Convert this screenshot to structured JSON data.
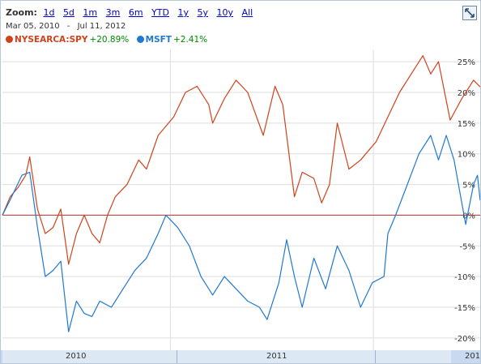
{
  "zoom": {
    "label": "Zoom:",
    "options": [
      "1d",
      "5d",
      "1m",
      "3m",
      "6m",
      "YTD",
      "1y",
      "5y",
      "10y",
      "All"
    ]
  },
  "date_range": {
    "start": "Mar 05, 2010",
    "separator": "-",
    "end": "Jul 11, 2012"
  },
  "legend": [
    {
      "name": "NYSEARCA:SPY",
      "change": "+20.89%",
      "color": "#d0421b"
    },
    {
      "name": "MSFT",
      "change": "+2.41%",
      "color": "#1f78d1"
    }
  ],
  "nav": {
    "labels": [
      "2010",
      "2011",
      "201"
    ]
  },
  "colors": {
    "spy": "#d0421b",
    "msft": "#1f78d1",
    "zero_line": "#b03030",
    "grid": "#dddddd"
  },
  "chart_data": {
    "type": "line",
    "title": "",
    "xlabel": "",
    "ylabel": "",
    "x_range": [
      "2010-03-05",
      "2012-07-11"
    ],
    "ylim": [
      -22,
      27
    ],
    "y_ticks": [
      25,
      20,
      15,
      10,
      5,
      0,
      -5,
      -10,
      -15,
      -20
    ],
    "y_tick_labels": [
      "25%",
      "20%",
      "15%",
      "10%",
      "5%",
      "0%",
      "-5%",
      "-10%",
      "-15%",
      "-20%"
    ],
    "x_tick_labels": [
      "2010",
      "2011"
    ],
    "grid": true,
    "series": [
      {
        "name": "NYSEARCA:SPY",
        "points": [
          [
            "2010-03-05",
            0
          ],
          [
            "2010-03-19",
            3
          ],
          [
            "2010-04-02",
            4.5
          ],
          [
            "2010-04-16",
            6.5
          ],
          [
            "2010-04-23",
            9.5
          ],
          [
            "2010-05-07",
            1
          ],
          [
            "2010-05-21",
            -3
          ],
          [
            "2010-06-04",
            -2
          ],
          [
            "2010-06-18",
            1
          ],
          [
            "2010-07-02",
            -8
          ],
          [
            "2010-07-16",
            -3
          ],
          [
            "2010-07-30",
            0
          ],
          [
            "2010-08-13",
            -3
          ],
          [
            "2010-08-27",
            -4.5
          ],
          [
            "2010-09-10",
            0
          ],
          [
            "2010-09-24",
            3
          ],
          [
            "2010-10-15",
            5
          ],
          [
            "2010-11-05",
            9
          ],
          [
            "2010-11-19",
            7.5
          ],
          [
            "2010-12-10",
            13
          ],
          [
            "2011-01-07",
            16
          ],
          [
            "2011-01-28",
            20
          ],
          [
            "2011-02-18",
            21
          ],
          [
            "2011-03-11",
            18
          ],
          [
            "2011-03-18",
            15
          ],
          [
            "2011-04-08",
            19
          ],
          [
            "2011-04-29",
            22
          ],
          [
            "2011-05-20",
            20
          ],
          [
            "2011-06-17",
            13
          ],
          [
            "2011-07-08",
            21
          ],
          [
            "2011-07-22",
            18
          ],
          [
            "2011-08-05",
            8
          ],
          [
            "2011-08-12",
            3
          ],
          [
            "2011-08-26",
            7
          ],
          [
            "2011-09-16",
            6
          ],
          [
            "2011-09-30",
            2
          ],
          [
            "2011-10-14",
            5
          ],
          [
            "2011-10-28",
            15
          ],
          [
            "2011-11-18",
            7.5
          ],
          [
            "2011-12-09",
            9
          ],
          [
            "2012-01-06",
            12
          ],
          [
            "2012-01-27",
            16
          ],
          [
            "2012-02-17",
            20
          ],
          [
            "2012-03-09",
            23
          ],
          [
            "2012-03-30",
            26
          ],
          [
            "2012-04-13",
            23
          ],
          [
            "2012-04-27",
            25
          ],
          [
            "2012-05-18",
            15.5
          ],
          [
            "2012-06-08",
            19
          ],
          [
            "2012-06-29",
            22
          ],
          [
            "2012-07-11",
            20.9
          ]
        ]
      },
      {
        "name": "MSFT",
        "points": [
          [
            "2010-03-05",
            0
          ],
          [
            "2010-03-19",
            2.5
          ],
          [
            "2010-04-09",
            6.5
          ],
          [
            "2010-04-23",
            7
          ],
          [
            "2010-05-07",
            -2
          ],
          [
            "2010-05-21",
            -10
          ],
          [
            "2010-06-04",
            -9
          ],
          [
            "2010-06-18",
            -7.5
          ],
          [
            "2010-07-02",
            -19
          ],
          [
            "2010-07-16",
            -14
          ],
          [
            "2010-07-30",
            -16
          ],
          [
            "2010-08-13",
            -16.5
          ],
          [
            "2010-08-27",
            -14
          ],
          [
            "2010-09-17",
            -15
          ],
          [
            "2010-10-08",
            -12
          ],
          [
            "2010-10-29",
            -9
          ],
          [
            "2010-11-19",
            -7
          ],
          [
            "2010-12-10",
            -3
          ],
          [
            "2010-12-24",
            0
          ],
          [
            "2011-01-14",
            -2
          ],
          [
            "2011-02-04",
            -5
          ],
          [
            "2011-02-25",
            -10
          ],
          [
            "2011-03-18",
            -13
          ],
          [
            "2011-04-08",
            -10
          ],
          [
            "2011-04-29",
            -12
          ],
          [
            "2011-05-20",
            -14
          ],
          [
            "2011-06-10",
            -15
          ],
          [
            "2011-06-24",
            -17
          ],
          [
            "2011-07-15",
            -11
          ],
          [
            "2011-07-29",
            -4
          ],
          [
            "2011-08-12",
            -10
          ],
          [
            "2011-08-26",
            -15
          ],
          [
            "2011-09-16",
            -7
          ],
          [
            "2011-10-07",
            -12
          ],
          [
            "2011-10-28",
            -5
          ],
          [
            "2011-11-18",
            -9
          ],
          [
            "2011-12-09",
            -15
          ],
          [
            "2011-12-30",
            -11
          ],
          [
            "2012-01-20",
            -10
          ],
          [
            "2012-01-27",
            -3
          ],
          [
            "2012-02-10",
            0
          ],
          [
            "2012-03-02",
            5
          ],
          [
            "2012-03-23",
            10
          ],
          [
            "2012-04-13",
            13
          ],
          [
            "2012-04-27",
            9
          ],
          [
            "2012-05-11",
            13
          ],
          [
            "2012-05-25",
            9
          ],
          [
            "2012-06-08",
            2
          ],
          [
            "2012-06-15",
            -1.5
          ],
          [
            "2012-06-29",
            5
          ],
          [
            "2012-07-06",
            6.5
          ],
          [
            "2012-07-11",
            2.41
          ]
        ]
      }
    ]
  }
}
